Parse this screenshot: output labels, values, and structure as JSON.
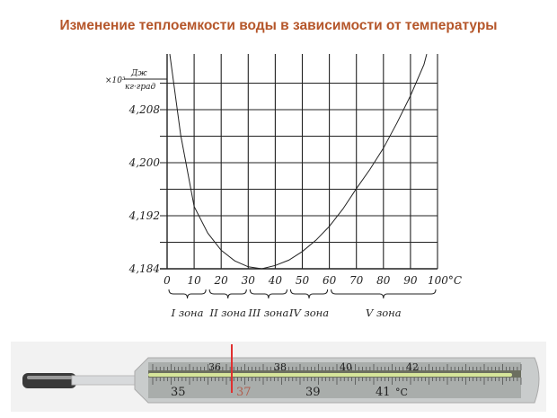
{
  "title": "Изменение теплоемкости воды в зависимости от температуры",
  "title_color": "#b5562a",
  "chart_data": {
    "type": "line",
    "title": "Изменение теплоемкости воды в зависимости от температуры",
    "xlabel": "°С",
    "ylabel": "×10³ Дж / кг·град",
    "y_unit_prefix": "×10³",
    "y_unit_numerator": "Дж",
    "y_unit_denominator": "кг·град",
    "xlim": [
      0,
      100
    ],
    "ylim": [
      4.184,
      4.2164
    ],
    "grid": true,
    "x_ticks": [
      "0",
      "10",
      "20",
      "30",
      "40",
      "50",
      "60",
      "70",
      "80",
      "90",
      "100°С"
    ],
    "y_ticks": [
      "4,184",
      "4,192",
      "4,200",
      "4,208"
    ],
    "y_tick_values": [
      4.184,
      4.192,
      4.2,
      4.208
    ],
    "series": [
      {
        "x": [
          1,
          5,
          10,
          15,
          20,
          25,
          30,
          35,
          40,
          45,
          50,
          55,
          60,
          65,
          70,
          75,
          80,
          85,
          90,
          95,
          96
        ],
        "y": [
          4.2164,
          4.2042,
          4.1934,
          4.1894,
          4.1868,
          4.1852,
          4.1843,
          4.184,
          4.1845,
          4.1853,
          4.1866,
          4.1883,
          4.1904,
          4.193,
          4.1961,
          4.199,
          4.2022,
          4.206,
          4.2101,
          4.2148,
          4.2164
        ]
      }
    ],
    "zones": [
      {
        "label": "I зона",
        "from": 0,
        "to": 15
      },
      {
        "label": "II зона",
        "from": 15,
        "to": 30
      },
      {
        "label": "III зона",
        "from": 30,
        "to": 45
      },
      {
        "label": "IV зона",
        "from": 45,
        "to": 60
      },
      {
        "label": "V зона",
        "from": 60,
        "to": 100
      }
    ]
  },
  "thermometer": {
    "top_scale": [
      "36",
      "38",
      "40",
      "42"
    ],
    "bottom_scale": [
      "35",
      "37",
      "39",
      "41",
      "°C"
    ],
    "marker_color": "#e03030"
  }
}
